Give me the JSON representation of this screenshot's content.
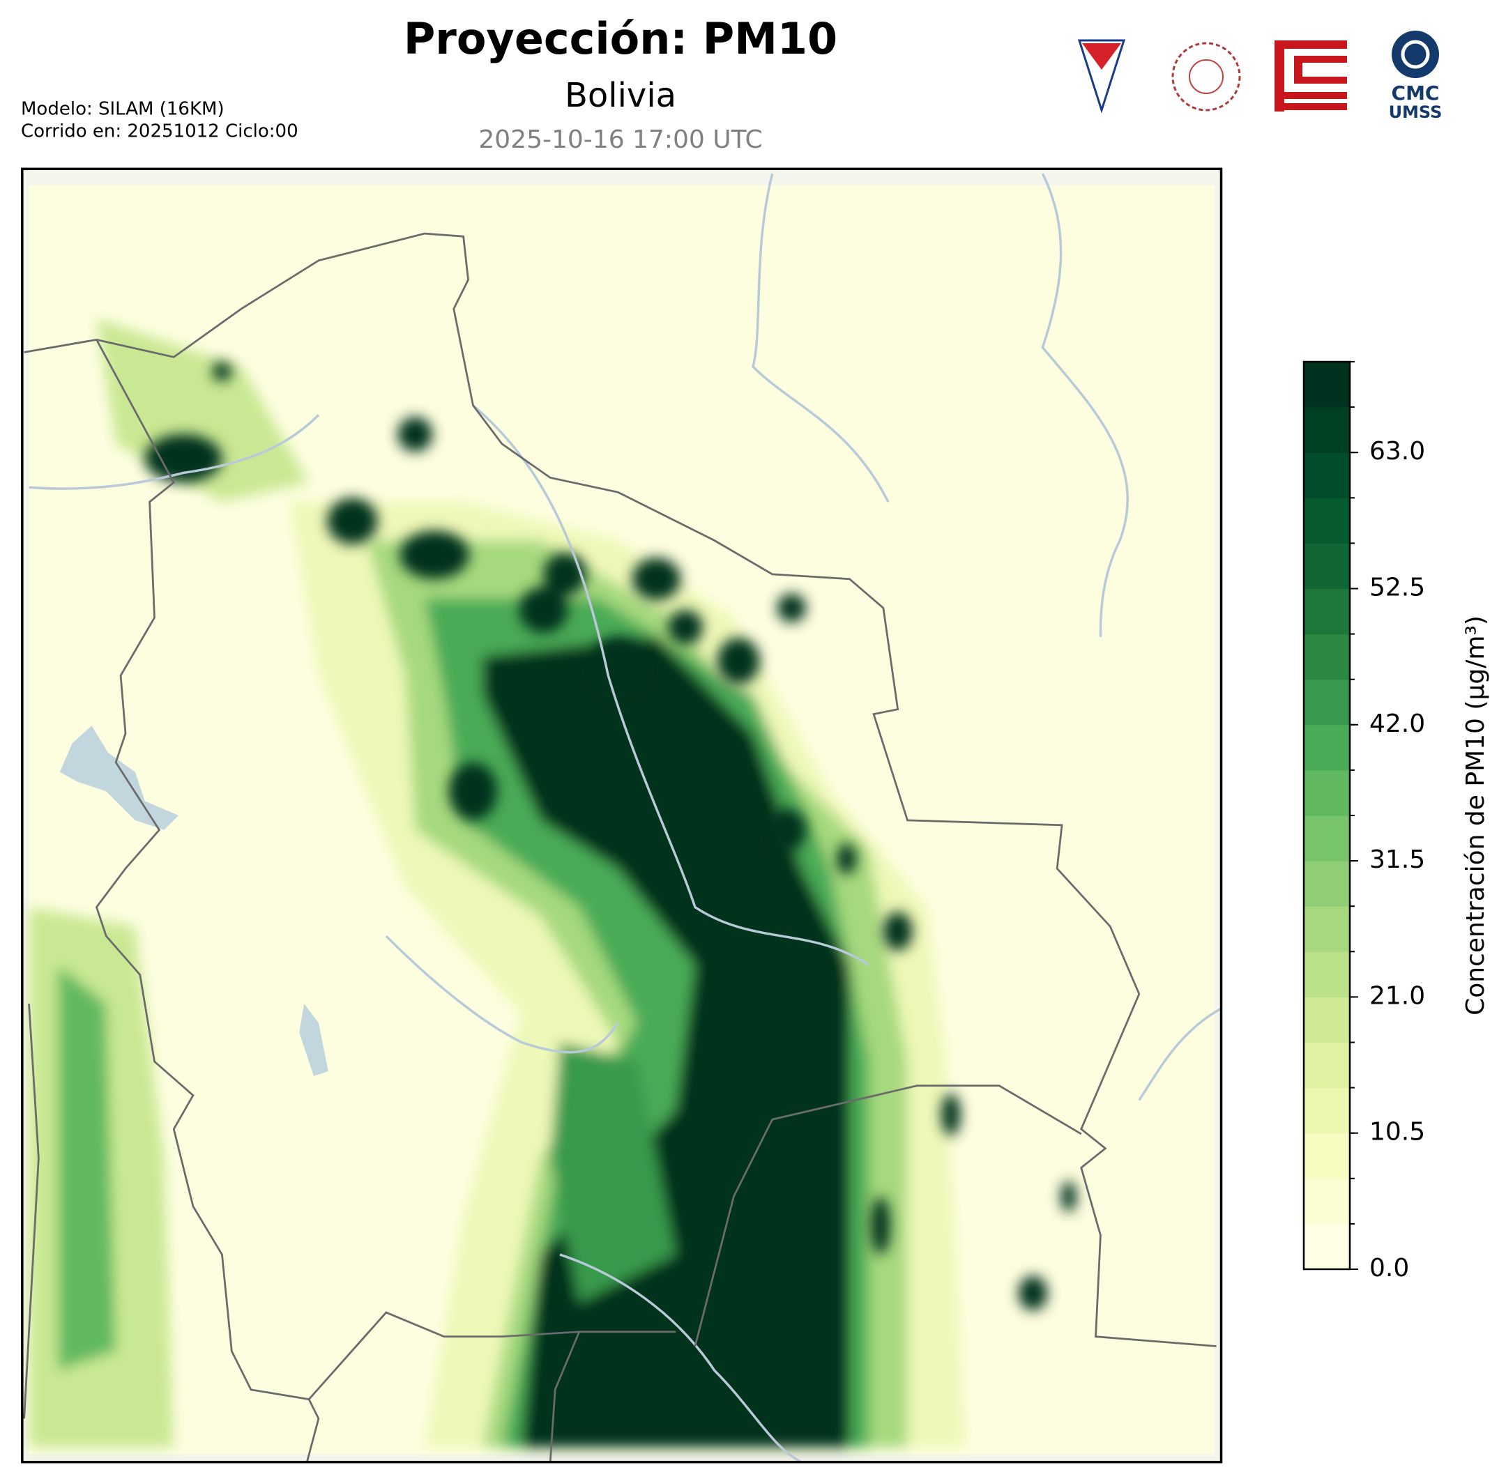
{
  "header": {
    "title": "Proyección: PM10",
    "subtitle": "Bolivia",
    "valid_time": "2025-10-16 17:00 UTC",
    "model": "Modelo: SILAM (16KM)",
    "run": "Corrido en: 20251012 Ciclo:00",
    "logo_text": [
      "CMC",
      "UMSS"
    ]
  },
  "chart_data": {
    "type": "colorbar",
    "label": "Concentración de PM10 (µg/m³)",
    "lim": [
      0,
      70
    ],
    "ticks": [
      {
        "value": 0,
        "label": "0.0"
      },
      10.5,
      {
        "value": 21,
        "label": "21.0"
      },
      31.5,
      {
        "value": 42,
        "label": "42.0"
      },
      52.5,
      {
        "value": 63,
        "label": "63.0"
      }
    ],
    "levels": [
      0,
      3.5,
      7,
      10.5,
      14,
      17.5,
      21,
      24.5,
      28,
      31.5,
      35,
      38.5,
      42,
      45.5,
      49,
      52.5,
      56,
      59.5,
      63,
      66.5,
      70
    ],
    "colors": [
      "#ffffe5",
      "#fbfdd3",
      "#f6fbc0",
      "#ecf7af",
      "#e0f2a1",
      "#cfea94",
      "#bce289",
      "#a6d97e",
      "#8fce74",
      "#78c46a",
      "#60b960",
      "#49ab56",
      "#379a4c",
      "#2a8843",
      "#1e773b",
      "#106634",
      "#055a2e",
      "#024d29",
      "#014023",
      "#00331f"
    ]
  }
}
